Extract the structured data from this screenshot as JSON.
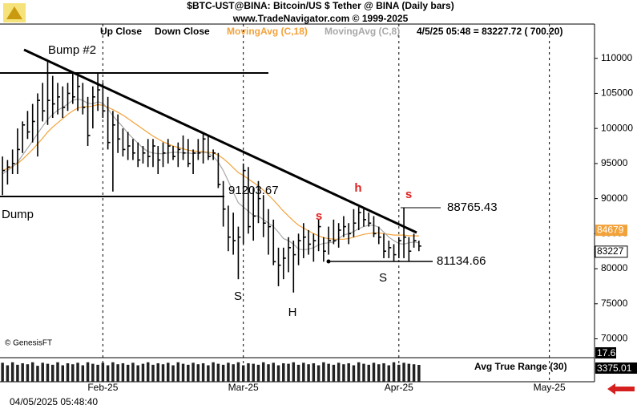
{
  "chart_data": {
    "type": "ohlc",
    "title": "$BTC-UST@BINA:  Bitcoin/US $ Tether @ BINA  (Daily bars)",
    "subtitle": "www.TradeNavigator.com © 1999-2025",
    "bar_legend": [
      "Up Close",
      "Down Close"
    ],
    "quote": "4/5/25 05:48 = 83227.72 ( 700.20)",
    "xlim": [
      -0.5,
      118
    ],
    "xticks": [
      {
        "value": 20,
        "label": "Feb-25"
      },
      {
        "value": 48,
        "label": "Mar-25"
      },
      {
        "value": 79,
        "label": "Apr-25"
      },
      {
        "value": 109,
        "label": "May-25"
      }
    ],
    "ylim": [
      68000,
      115000
    ],
    "yticks": [
      70000,
      75000,
      80000,
      85000,
      90000,
      95000,
      100000,
      105000,
      110000
    ],
    "bars": {
      "high": [
        96000,
        95500,
        97000,
        100000,
        101000,
        102500,
        103500,
        105000,
        106500,
        109500,
        107500,
        106500,
        106000,
        106500,
        108000,
        107500,
        106500,
        104500,
        106000,
        108000,
        106500,
        104500,
        102500,
        102000,
        100000,
        99500,
        98500,
        98000,
        97500,
        98500,
        98500,
        97500,
        98000,
        98500,
        97500,
        98000,
        99000,
        98500,
        97000,
        98500,
        99500,
        99000,
        97000,
        96500,
        92500,
        89000,
        88000,
        86000,
        95000,
        94500,
        91500,
        92500,
        90500,
        88500,
        87000,
        83000,
        83000,
        84500,
        84000,
        85000,
        86500,
        85500,
        85000,
        87000,
        84500,
        86000,
        87000,
        86500,
        87500,
        86500,
        88500,
        88800,
        88500,
        88000,
        87500,
        86000,
        85000,
        84000,
        83500,
        84500,
        88700,
        84500,
        85000,
        84000
      ],
      "low": [
        90500,
        92000,
        93500,
        93500,
        96500,
        98500,
        98000,
        96000,
        101000,
        100500,
        101500,
        102000,
        101500,
        102500,
        103500,
        102500,
        102000,
        97500,
        100000,
        102500,
        101500,
        97000,
        91000,
        96500,
        96000,
        95500,
        95500,
        94500,
        95000,
        94500,
        94500,
        93500,
        94500,
        95000,
        95500,
        94500,
        95500,
        94500,
        93500,
        95500,
        95000,
        95500,
        95500,
        91500,
        86000,
        82500,
        82000,
        78500,
        83500,
        85000,
        84000,
        86500,
        84500,
        82000,
        80500,
        77500,
        78500,
        79500,
        76600,
        80500,
        81500,
        82000,
        81000,
        82500,
        81000,
        82000,
        83500,
        83000,
        84500,
        83500,
        84500,
        85500,
        86000,
        86000,
        84500,
        83500,
        81500,
        81500,
        81000,
        81500,
        81500,
        81000,
        83000,
        82500
      ],
      "close": [
        94000,
        94500,
        95000,
        97000,
        100500,
        99500,
        101000,
        104000,
        102500,
        104000,
        103500,
        104500,
        103000,
        105000,
        104500,
        106000,
        103000,
        99000,
        104500,
        105500,
        102500,
        98000,
        100500,
        98500,
        97000,
        97500,
        96500,
        95500,
        96500,
        96000,
        97500,
        95500,
        96500,
        97500,
        96000,
        97000,
        96500,
        95000,
        96500,
        96500,
        98500,
        96000,
        96500,
        92000,
        88500,
        84500,
        84000,
        84500,
        94000,
        86000,
        87500,
        90000,
        86500,
        86000,
        81000,
        80500,
        81500,
        83000,
        82000,
        84000,
        84500,
        83500,
        84000,
        86000,
        82500,
        84000,
        84000,
        85500,
        86000,
        85000,
        86500,
        88000,
        87000,
        86500,
        85000,
        84500,
        82500,
        83000,
        82000,
        84000,
        84500,
        82500,
        84000,
        83227
      ]
    },
    "series": [
      {
        "name": "MovingAvg (C,18)",
        "color": "#f2a23a",
        "values": [
          94000,
          94300,
          94600,
          95000,
          95600,
          96300,
          97000,
          97800,
          98600,
          99500,
          100200,
          100800,
          101400,
          102000,
          102500,
          102900,
          103100,
          103100,
          103200,
          103400,
          103300,
          103000,
          102700,
          102300,
          101900,
          101400,
          100900,
          100400,
          99900,
          99400,
          98900,
          98500,
          98100,
          97800,
          97500,
          97300,
          97100,
          96900,
          96800,
          96700,
          96700,
          96600,
          96500,
          96200,
          95700,
          95100,
          94400,
          93700,
          93300,
          92800,
          92300,
          91800,
          91200,
          90500,
          89800,
          89000,
          88200,
          87500,
          86800,
          86200,
          85800,
          85400,
          85000,
          84700,
          84400,
          84300,
          84200,
          84200,
          84200,
          84300,
          84500,
          84700,
          84900,
          85000,
          85100,
          85100,
          85000,
          84900,
          84800,
          84800,
          84800,
          84700,
          84700,
          84679
        ]
      },
      {
        "name": "MovingAvg (C,8)",
        "color": "#a8a8a8",
        "values": [
          93500,
          94000,
          94500,
          95200,
          96200,
          97200,
          98200,
          99300,
          100300,
          101300,
          102000,
          102600,
          103000,
          103500,
          104000,
          104200,
          104000,
          103600,
          103500,
          103800,
          103600,
          102800,
          101800,
          101000,
          100200,
          99300,
          98600,
          97900,
          97200,
          96700,
          96500,
          96400,
          96400,
          96500,
          96600,
          96600,
          96500,
          96500,
          96400,
          96500,
          96600,
          96500,
          96000,
          95200,
          94000,
          92500,
          90900,
          89400,
          88800,
          88200,
          87600,
          87500,
          87000,
          86500,
          86000,
          85200,
          84300,
          84000,
          83500,
          82800,
          82700,
          82800,
          83000,
          83400,
          83600,
          83700,
          83800,
          84300,
          84800,
          85000,
          85300,
          85700,
          86000,
          86200,
          86200,
          85900,
          85200,
          84500,
          84000,
          83600,
          83500,
          83700,
          83800,
          83700
        ]
      }
    ],
    "last_labels": [
      84679,
      83227
    ],
    "annotations": [
      "Bump #2",
      "Dump",
      "91203.67",
      "88765.43",
      "81134.66",
      "S",
      "H",
      "S",
      "s",
      "h",
      "s"
    ],
    "watermark": "© GenesisFT",
    "indicator": {
      "name": "Avg True Range (30)",
      "labels": [
        "17.65",
        "3375.01"
      ],
      "ylim": [
        0,
        4500
      ],
      "values": [
        3800,
        3300,
        3900,
        3400,
        3700,
        3500,
        3900,
        3200,
        3800,
        3600,
        3400,
        3900,
        3300,
        3700,
        3500,
        3800,
        3300,
        3900,
        3600,
        3400,
        3800,
        3300,
        3900,
        3500,
        3700,
        3400,
        3800,
        3300,
        3600,
        3900,
        3400,
        3700,
        3500,
        3800,
        3300,
        3900,
        3600,
        3400,
        3800,
        3500,
        3700,
        3300,
        3900,
        3600,
        3400,
        3800,
        3500,
        3900,
        3300,
        3700,
        3600,
        3400,
        3900,
        3500,
        3800,
        3300,
        3700,
        3600,
        3900,
        3400,
        3800,
        3500,
        3700,
        3300,
        3900,
        3600,
        3400,
        3800,
        3500,
        3700,
        3300,
        3900,
        3600,
        3400,
        3800,
        3500,
        3700,
        3300,
        3900,
        3400,
        3800,
        3600,
        3500,
        3375
      ]
    },
    "timestamp": "04/05/2025 05:48:40"
  }
}
